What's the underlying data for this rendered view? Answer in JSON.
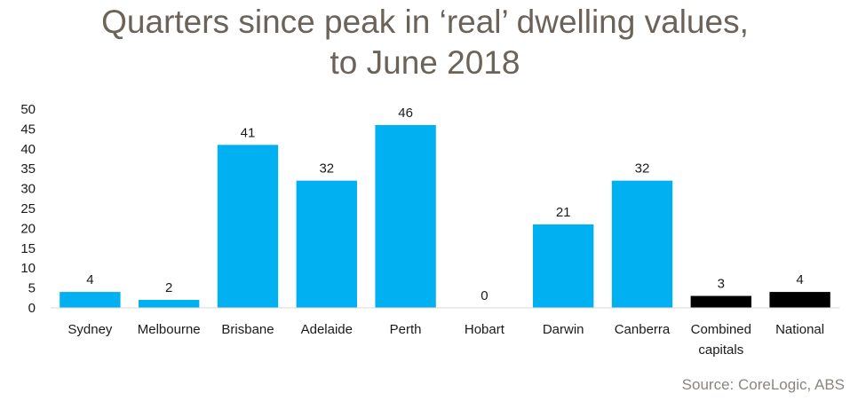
{
  "chart_data": {
    "type": "bar",
    "title_lines": [
      "Quarters since peak in ‘real’ dwelling values,",
      "to June 2018"
    ],
    "categories": [
      [
        "Sydney"
      ],
      [
        "Melbourne"
      ],
      [
        "Brisbane"
      ],
      [
        "Adelaide"
      ],
      [
        "Perth"
      ],
      [
        "Hobart"
      ],
      [
        "Darwin"
      ],
      [
        "Canberra"
      ],
      [
        "Combined",
        "capitals"
      ],
      [
        "National"
      ]
    ],
    "values": [
      4,
      2,
      41,
      32,
      46,
      0,
      21,
      32,
      3,
      4
    ],
    "bar_colors": [
      "#00b0f0",
      "#00b0f0",
      "#00b0f0",
      "#00b0f0",
      "#00b0f0",
      "#00b0f0",
      "#00b0f0",
      "#00b0f0",
      "#000000",
      "#000000"
    ],
    "ylim": [
      0,
      50
    ],
    "yticks": [
      0,
      5,
      10,
      15,
      20,
      25,
      30,
      35,
      40,
      45,
      50
    ],
    "xlabel": "",
    "ylabel": "",
    "grid": false,
    "source": "Source: CoreLogic, ABS"
  }
}
